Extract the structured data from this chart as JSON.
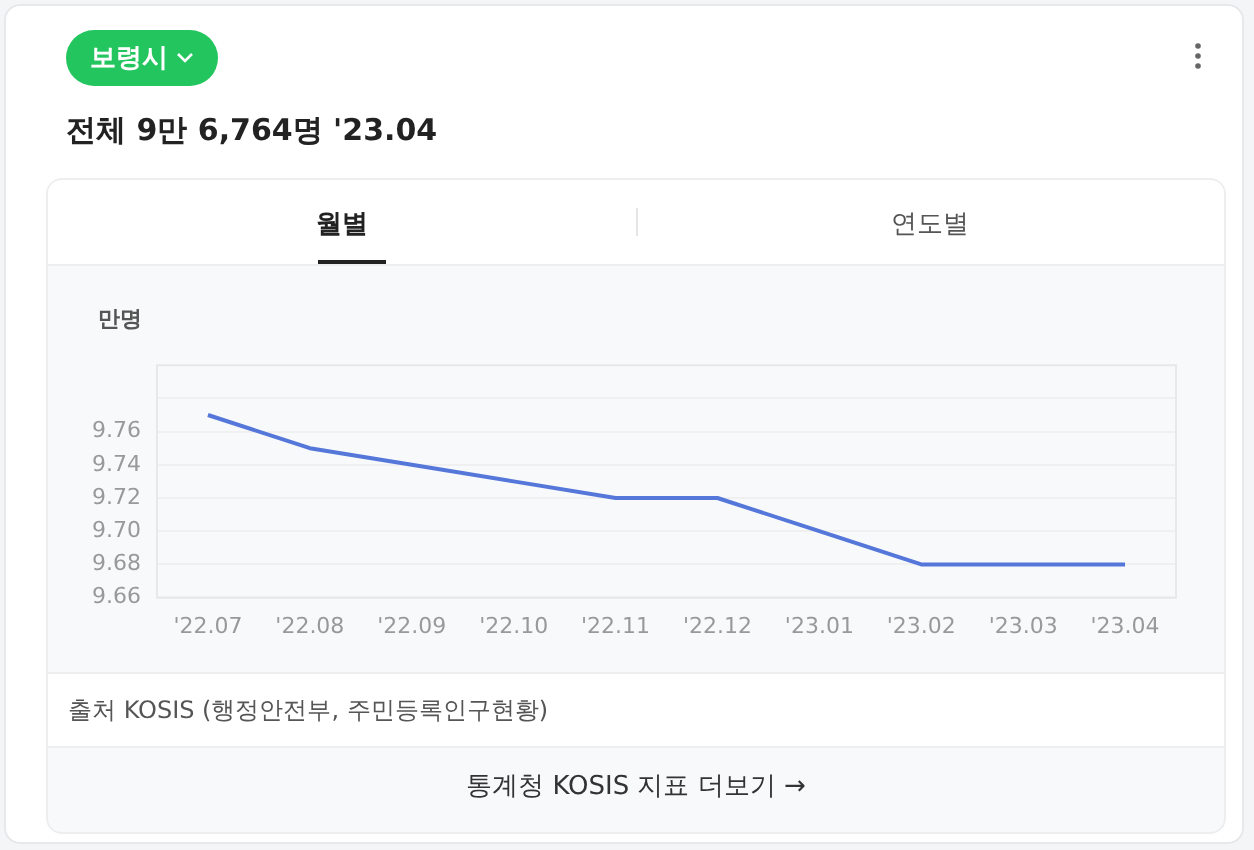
{
  "chart_data": {
    "type": "line",
    "title": "보령시",
    "subtitle": "전체 9만 6,764명 '23.04",
    "ylabel": "만명",
    "annotations": [
      "월별",
      "연도별",
      "출처 KOSIS (행정안전부, 주민등록인구현황)",
      "통계청 KOSIS 지표 더보기 →"
    ],
    "categories": [
      "'22.07",
      "'22.08",
      "'22.09",
      "'22.10",
      "'22.11",
      "'22.12",
      "'23.01",
      "'23.02",
      "'23.03",
      "'23.04"
    ],
    "series": [
      {
        "color": "#5577d9",
        "values": [
          9.77,
          9.75,
          9.74,
          9.73,
          9.72,
          9.72,
          9.7,
          9.68,
          9.68,
          9.68
        ]
      }
    ],
    "ylim": [
      9.66,
      9.8
    ],
    "yticks": [
      9.66,
      9.68,
      {
        "value": 9.7,
        "label": "9.70"
      },
      9.72,
      9.74,
      9.76,
      {
        "value": 9.78,
        "label": null
      }
    ],
    "grid": "y",
    "legend": false,
    "marker": "none",
    "line_style": "solid"
  }
}
